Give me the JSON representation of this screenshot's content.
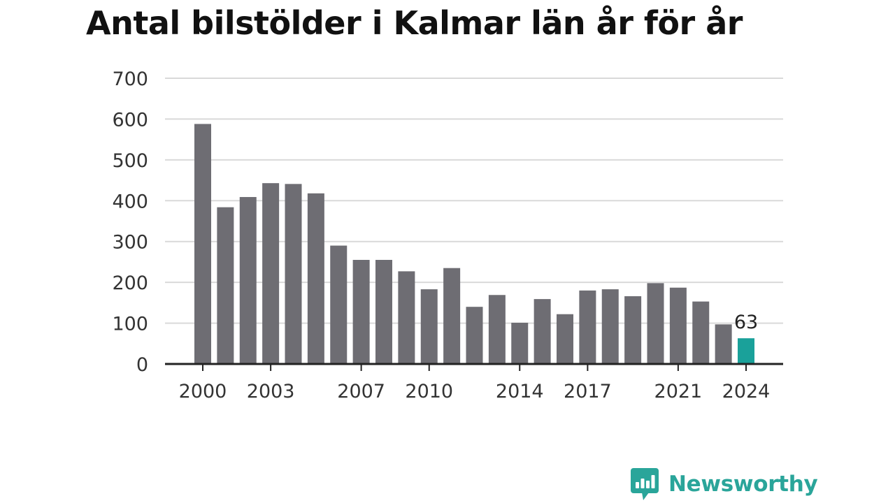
{
  "chart_data": {
    "type": "bar",
    "title": "Antal bilstölder i Kalmar län år för år",
    "xlabel": "",
    "ylabel": "",
    "ylim": [
      0,
      700
    ],
    "yticks": [
      "0",
      "100",
      "200",
      "300",
      "400",
      "500",
      "600",
      "700"
    ],
    "x": [
      2000,
      2001,
      2002,
      2003,
      2004,
      2005,
      2006,
      2007,
      2008,
      2009,
      2010,
      2011,
      2012,
      2013,
      2014,
      2015,
      2016,
      2017,
      2018,
      2019,
      2020,
      2021,
      2022,
      2023,
      2024
    ],
    "values": [
      588,
      384,
      409,
      443,
      441,
      418,
      290,
      255,
      255,
      227,
      183,
      235,
      140,
      169,
      101,
      159,
      122,
      180,
      183,
      166,
      198,
      187,
      153,
      97,
      63
    ],
    "xtick_labels": [
      "2000",
      "2003",
      "2007",
      "2010",
      "2014",
      "2017",
      "2021",
      "2024"
    ],
    "highlight": {
      "index": 24,
      "label": "63"
    },
    "grid": true,
    "legend": "none",
    "colors": {
      "bar": "#6e6d73",
      "highlight": "#1aa19a",
      "grid": "#d9d9d9",
      "axis": "#222222",
      "tick_text": "#333333"
    }
  },
  "brand": {
    "name": "Newsworthy",
    "color": "#2aa59a",
    "icon": "newsworthy-logo-icon"
  }
}
